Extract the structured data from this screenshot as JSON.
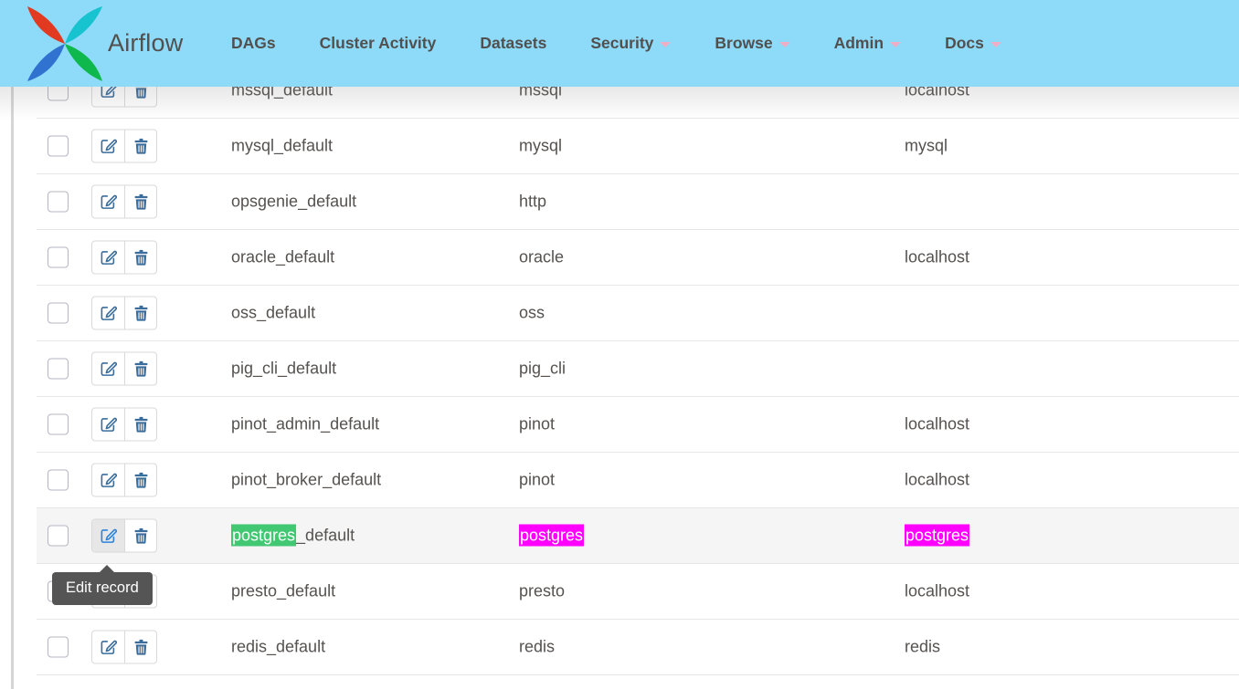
{
  "navbar": {
    "brand": "Airflow",
    "items": [
      {
        "label": "DAGs",
        "dropdown": false
      },
      {
        "label": "Cluster Activity",
        "dropdown": false
      },
      {
        "label": "Datasets",
        "dropdown": false
      },
      {
        "label": "Security",
        "dropdown": true
      },
      {
        "label": "Browse",
        "dropdown": true
      },
      {
        "label": "Admin",
        "dropdown": true
      },
      {
        "label": "Docs",
        "dropdown": true
      }
    ]
  },
  "tooltip": {
    "text": "Edit record"
  },
  "icons": {
    "edit": "edit-icon",
    "delete": "trash-icon",
    "dropdown": "chevron-down-icon",
    "logo": "airflow-pinwheel-logo"
  },
  "table": {
    "rows": [
      {
        "conn_id": [
          {
            "t": "mssql_default"
          }
        ],
        "conn_type": [
          {
            "t": "mssql"
          }
        ],
        "host": [
          {
            "t": "localhost"
          }
        ]
      },
      {
        "conn_id": [
          {
            "t": "mysql_default"
          }
        ],
        "conn_type": [
          {
            "t": "mysql"
          }
        ],
        "host": [
          {
            "t": "mysql"
          }
        ]
      },
      {
        "conn_id": [
          {
            "t": "opsgenie_default"
          }
        ],
        "conn_type": [
          {
            "t": "http"
          }
        ],
        "host": []
      },
      {
        "conn_id": [
          {
            "t": "oracle_default"
          }
        ],
        "conn_type": [
          {
            "t": "oracle"
          }
        ],
        "host": [
          {
            "t": "localhost"
          }
        ]
      },
      {
        "conn_id": [
          {
            "t": "oss_default"
          }
        ],
        "conn_type": [
          {
            "t": "oss"
          }
        ],
        "host": []
      },
      {
        "conn_id": [
          {
            "t": "pig_cli_default"
          }
        ],
        "conn_type": [
          {
            "t": "pig_cli"
          }
        ],
        "host": []
      },
      {
        "conn_id": [
          {
            "t": "pinot_admin_default"
          }
        ],
        "conn_type": [
          {
            "t": "pinot"
          }
        ],
        "host": [
          {
            "t": "localhost"
          }
        ]
      },
      {
        "conn_id": [
          {
            "t": "pinot_broker_default"
          }
        ],
        "conn_type": [
          {
            "t": "pinot"
          }
        ],
        "host": [
          {
            "t": "localhost"
          }
        ]
      },
      {
        "conn_id": [
          {
            "t": "postgres",
            "h": "green"
          },
          {
            "t": "_default"
          }
        ],
        "conn_type": [
          {
            "t": "postgres",
            "h": "magenta"
          }
        ],
        "host": [
          {
            "t": "postgres",
            "h": "magenta"
          }
        ],
        "hover": true,
        "edit_hover": true,
        "tooltip": true
      },
      {
        "conn_id": [
          {
            "t": "presto_default"
          }
        ],
        "conn_type": [
          {
            "t": "presto"
          }
        ],
        "host": [
          {
            "t": "localhost"
          }
        ]
      },
      {
        "conn_id": [
          {
            "t": "redis_default"
          }
        ],
        "conn_type": [
          {
            "t": "redis"
          }
        ],
        "host": [
          {
            "t": "redis"
          }
        ]
      },
      {
        "partial": true
      }
    ]
  },
  "colors": {
    "navbar_bg": "#8EDAF9",
    "highlight_green": "#42C873",
    "highlight_magenta": "#FF00FF",
    "icon_blue": "#3A6D9C",
    "icon_blue_hover": "#2E82DC",
    "hover_row_bg": "#F5F5F5",
    "tooltip_bg": "#555555",
    "caret_pink": "#EFAEC5"
  }
}
